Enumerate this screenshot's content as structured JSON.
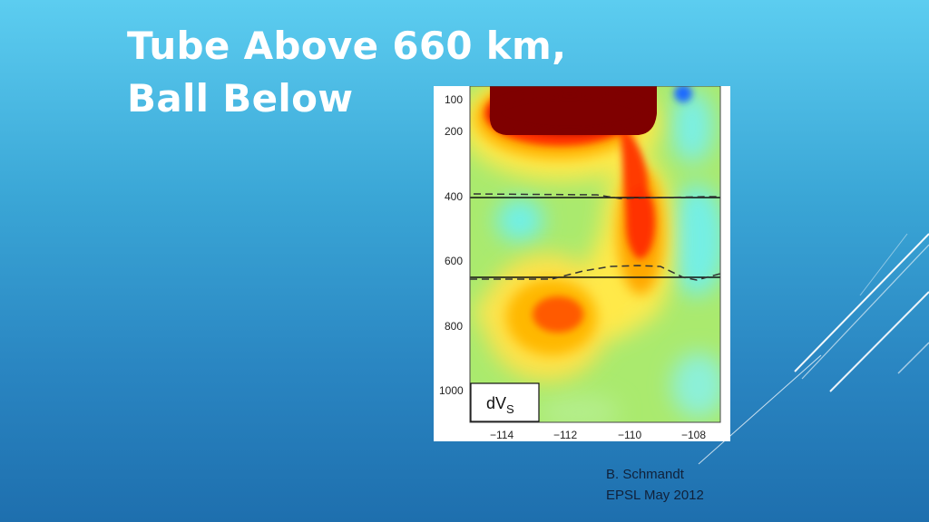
{
  "slide": {
    "title_lines": [
      "Tube Above 660 km,",
      "Ball Below"
    ],
    "credit_lines": [
      "B. Schmandt",
      "EPSL May 2012"
    ]
  },
  "figure": {
    "y_ticks": [
      "100",
      "200",
      "400",
      "600",
      "800",
      "1000"
    ],
    "x_ticks": [
      "−114",
      "−112",
      "−110",
      "−108"
    ],
    "legend_label": "dV",
    "legend_subscript": "S",
    "colors": {
      "background": "#aaea6e",
      "strong_slow": "#7f0000",
      "slow": "#ff2e00",
      "moderate": "#ffb000",
      "weak": "#ffe94a",
      "neutral": "#a8ec6e",
      "fast": "#6ff0e8",
      "fastest": "#1e6aff"
    }
  }
}
